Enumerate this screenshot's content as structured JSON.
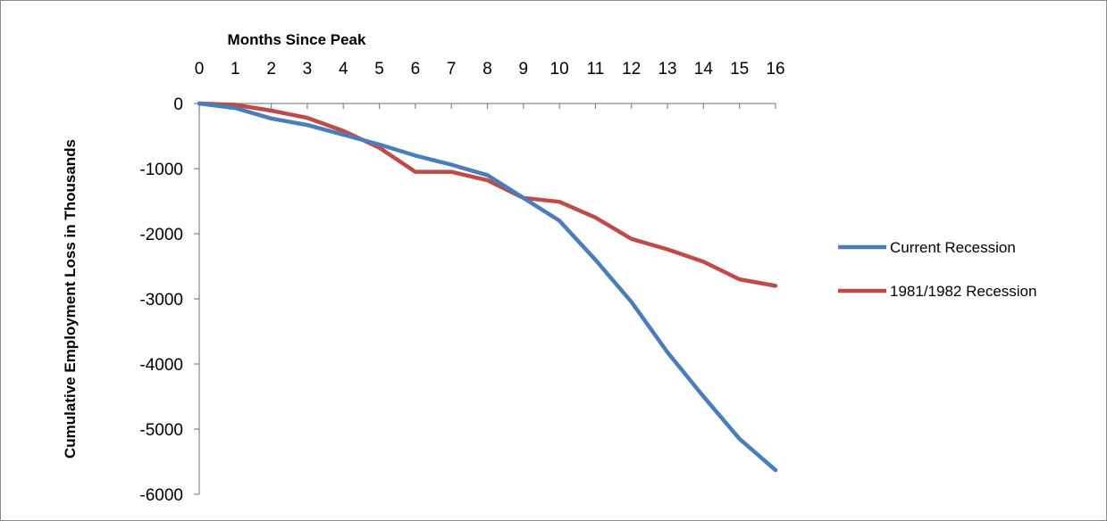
{
  "chart_data": {
    "type": "line",
    "title": "",
    "xlabel": "Months Since Peak",
    "ylabel": "Cumulative Employment Loss in Thousands",
    "x": [
      0,
      1,
      2,
      3,
      4,
      5,
      6,
      7,
      8,
      9,
      10,
      11,
      12,
      13,
      14,
      15,
      16
    ],
    "xlim": [
      0,
      16
    ],
    "ylim": [
      -6000,
      0
    ],
    "y_ticks": [
      0,
      -1000,
      -2000,
      -3000,
      -4000,
      -5000,
      -6000
    ],
    "x_axis_position": "top",
    "grid": false,
    "legend_position": "right",
    "series": [
      {
        "name": "Current Recession",
        "color": "#4a7ebb",
        "values": [
          0,
          -70,
          -230,
          -330,
          -480,
          -630,
          -800,
          -940,
          -1100,
          -1450,
          -1800,
          -2400,
          -3050,
          -3820,
          -4500,
          -5150,
          -5630
        ]
      },
      {
        "name": "1981/1982 Recession",
        "color": "#be4b48",
        "values": [
          0,
          -20,
          -110,
          -220,
          -420,
          -680,
          -1050,
          -1050,
          -1180,
          -1450,
          -1510,
          -1750,
          -2080,
          -2240,
          -2430,
          -2700,
          -2800
        ]
      }
    ]
  }
}
